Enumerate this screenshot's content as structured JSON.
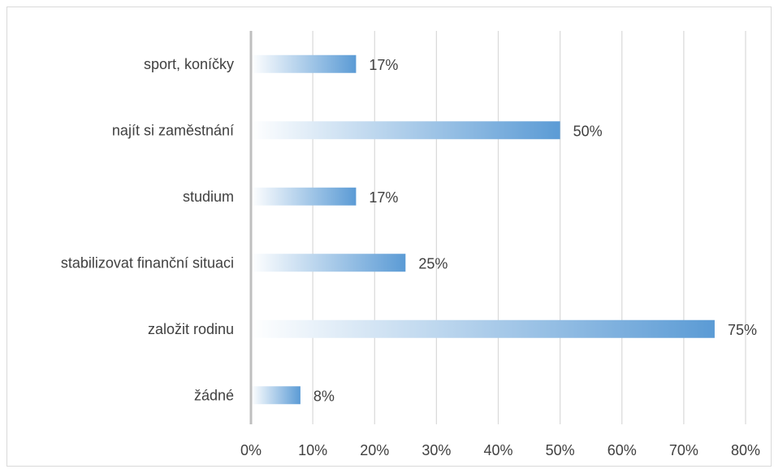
{
  "chart_data": {
    "type": "bar",
    "orientation": "horizontal",
    "categories": [
      "sport, koníčky",
      "najít si zaměstnání",
      "studium",
      "stabilizovat finanční situaci",
      "založit rodinu",
      "žádné"
    ],
    "values": [
      17,
      50,
      17,
      25,
      75,
      8
    ],
    "data_labels": [
      "17%",
      "50%",
      "17%",
      "25%",
      "75%",
      "8%"
    ],
    "xlim": [
      0,
      80
    ],
    "x_ticks": [
      0,
      10,
      20,
      30,
      40,
      50,
      60,
      70,
      80
    ],
    "x_tick_labels": [
      "0%",
      "10%",
      "20%",
      "30%",
      "40%",
      "50%",
      "60%",
      "70%",
      "80%"
    ],
    "title": "",
    "xlabel": "",
    "ylabel": "",
    "grid": "vertical",
    "legend": "none",
    "colors": {
      "bar_start": "#ffffff",
      "bar_end": "#5b9bd5",
      "grid": "#d9d9d9",
      "axis": "#bfbfbf",
      "text": "#404040"
    }
  }
}
